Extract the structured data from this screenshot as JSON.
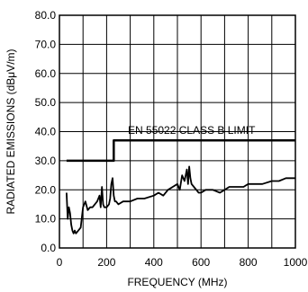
{
  "chart_data": {
    "type": "line",
    "title": "",
    "xlabel": "FREQUENCY (MHz)",
    "ylabel": "RADIATED EMISSIONS (dBμV/m)",
    "xlim": [
      0,
      1000
    ],
    "ylim": [
      0,
      80
    ],
    "x_ticks": [
      0,
      200,
      400,
      600,
      800,
      1000
    ],
    "y_ticks": [
      "0.0",
      "10.0",
      "20.0",
      "30.0",
      "40.0",
      "50.0",
      "60.0",
      "70.0",
      "80.0"
    ],
    "grid": true,
    "legend": "none",
    "annotation": "EN 55022 CLASS B LIMIT",
    "series": [
      {
        "role": "limit",
        "x": [
          30,
          230,
          230,
          1000
        ],
        "y": [
          30,
          30,
          37,
          37
        ]
      },
      {
        "role": "emissions",
        "x": [
          30,
          35,
          40,
          45,
          50,
          55,
          60,
          65,
          70,
          80,
          90,
          100,
          110,
          120,
          130,
          140,
          150,
          160,
          170,
          175,
          180,
          185,
          190,
          200,
          210,
          215,
          220,
          225,
          230,
          235,
          240,
          250,
          270,
          300,
          330,
          360,
          400,
          420,
          440,
          460,
          480,
          500,
          510,
          520,
          530,
          540,
          545,
          550,
          555,
          560,
          570,
          580,
          590,
          600,
          620,
          650,
          680,
          700,
          720,
          750,
          780,
          800,
          830,
          860,
          900,
          930,
          960,
          980,
          1000
        ],
        "y": [
          19,
          10,
          14,
          12,
          8,
          6,
          5,
          6,
          5,
          6,
          7,
          14,
          16,
          13,
          14,
          14,
          15,
          16,
          18,
          14,
          21,
          15,
          14,
          14,
          15,
          17,
          22,
          24,
          18,
          16,
          16,
          15,
          16,
          16,
          17,
          17,
          18,
          19,
          18,
          20,
          21,
          22,
          20,
          25,
          23,
          27,
          22,
          28,
          24,
          22,
          21,
          20,
          19,
          19,
          20,
          20,
          19,
          20,
          21,
          21,
          21,
          22,
          22,
          22,
          23,
          23,
          24,
          24,
          24
        ]
      }
    ]
  }
}
